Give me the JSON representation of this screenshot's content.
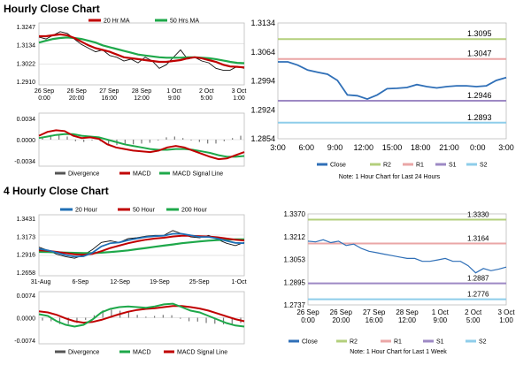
{
  "sections": {
    "hourly_title": "Hourly Close Chart",
    "four_hourly_title": "4 Hourly Close Chart"
  },
  "colors": {
    "red": "#c00000",
    "green": "#1ea84a",
    "blue": "#1f6fb5",
    "close_line": "#2f6fb7",
    "r2": "#b3cf7c",
    "r1": "#eaa6a6",
    "s1": "#9d89c4",
    "s2": "#8ecdea",
    "grid": "#cccccc"
  },
  "chart_data": [
    {
      "id": "hourly_price",
      "type": "line",
      "legend": [
        "20 Hr MA",
        "50 Hrs MA"
      ],
      "legend_colors": [
        "#c00000",
        "#1ea84a"
      ],
      "y_ticks": [
        "1.3247",
        "1.3134",
        "1.3022",
        "1.2910"
      ],
      "ylim": [
        1.291,
        1.3247
      ],
      "x_ticks": [
        [
          "26 Sep",
          "0:00"
        ],
        [
          "26 Sep",
          "20:00"
        ],
        [
          "27 Sep",
          "16:00"
        ],
        [
          "28 Sep",
          "12:00"
        ],
        [
          "1 Oct",
          "9:00"
        ],
        [
          "2 Oct",
          "5:00"
        ],
        [
          "3 Oct",
          "1:00"
        ]
      ],
      "series": [
        {
          "name": "Price",
          "values": [
            1.317,
            1.316,
            1.318,
            1.32,
            1.319,
            1.316,
            1.313,
            1.311,
            1.309,
            1.31,
            1.307,
            1.306,
            1.304,
            1.305,
            1.303,
            1.306,
            1.304,
            1.3,
            1.302,
            1.306,
            1.31,
            1.305,
            1.306,
            1.304,
            1.303,
            1.3,
            1.299,
            1.299,
            1.301,
            1.3
          ]
        },
        {
          "name": "20 Hr MA",
          "values": [
            1.3175,
            1.3175,
            1.318,
            1.3185,
            1.318,
            1.3165,
            1.3145,
            1.3125,
            1.311,
            1.31,
            1.309,
            1.3075,
            1.306,
            1.3055,
            1.305,
            1.3045,
            1.304,
            1.3035,
            1.3035,
            1.304,
            1.3045,
            1.3055,
            1.306,
            1.3055,
            1.3045,
            1.3035,
            1.302,
            1.301,
            1.3008,
            1.3005
          ]
        },
        {
          "name": "50 Hrs MA",
          "values": [
            1.314,
            1.315,
            1.316,
            1.3165,
            1.3168,
            1.3165,
            1.316,
            1.315,
            1.314,
            1.3125,
            1.3115,
            1.3105,
            1.3095,
            1.3085,
            1.3075,
            1.307,
            1.3065,
            1.306,
            1.3058,
            1.3058,
            1.3058,
            1.306,
            1.306,
            1.3058,
            1.3055,
            1.305,
            1.3043,
            1.3035,
            1.303,
            1.3028
          ]
        }
      ]
    },
    {
      "id": "hourly_macd",
      "type": "line",
      "legend": [
        "Divergence",
        "MACD",
        "MACD Signal Line"
      ],
      "legend_colors": [
        "#555555",
        "#c00000",
        "#1ea84a"
      ],
      "y_ticks": [
        "0.0034",
        "0.0000",
        "-0.0034"
      ],
      "ylim": [
        -0.0034,
        0.0034
      ],
      "series": [
        {
          "name": "MACD",
          "values": [
            0.0005,
            0.001,
            0.0012,
            0.0011,
            0.0005,
            0.0002,
            0.0003,
            0.0001,
            -0.0006,
            -0.001,
            -0.0012,
            -0.0014,
            -0.0015,
            -0.0016,
            -0.0014,
            -0.001,
            -0.0008,
            -0.001,
            -0.0014,
            -0.0018,
            -0.0022,
            -0.0025,
            -0.0024,
            -0.002,
            -0.0016
          ]
        },
        {
          "name": "MACD Signal Line",
          "values": [
            0.0002,
            0.0004,
            0.0006,
            0.0007,
            0.0007,
            0.0005,
            0.0004,
            0.0003,
            0.0,
            -0.0003,
            -0.0006,
            -0.0008,
            -0.001,
            -0.0012,
            -0.0013,
            -0.0013,
            -0.0012,
            -0.0012,
            -0.0013,
            -0.0015,
            -0.0017,
            -0.002,
            -0.0022,
            -0.0022,
            -0.0021
          ]
        },
        {
          "name": "Divergence",
          "values": [
            0.0003,
            0.0006,
            0.0006,
            0.0004,
            -0.0002,
            -0.0003,
            -0.0001,
            -0.0002,
            -0.0006,
            -0.0007,
            -0.0006,
            -0.0006,
            -0.0005,
            -0.0004,
            -0.0001,
            0.0003,
            0.0004,
            0.0002,
            -0.0001,
            -0.0003,
            -0.0005,
            -0.0005,
            -0.0002,
            0.0002,
            0.0005
          ]
        }
      ]
    },
    {
      "id": "hourly_close_levels",
      "type": "line",
      "y_ticks": [
        "1.3134",
        "1.3064",
        "1.2994",
        "1.2924",
        "1.2854"
      ],
      "ylim": [
        1.2854,
        1.3134
      ],
      "x_ticks": [
        "3:00",
        "6:00",
        "9:00",
        "12:00",
        "15:00",
        "18:00",
        "21:00",
        "0:00",
        "3:00"
      ],
      "levels": [
        {
          "name": "R2",
          "value": 1.3095,
          "label": "1.3095"
        },
        {
          "name": "R1",
          "value": 1.3047,
          "label": "1.3047"
        },
        {
          "name": "S1",
          "value": 1.2946,
          "label": "1.2946"
        },
        {
          "name": "S2",
          "value": 1.2893,
          "label": "1.2893"
        }
      ],
      "close_values": [
        1.304,
        1.304,
        1.3032,
        1.302,
        1.3015,
        1.301,
        1.2995,
        1.296,
        1.2958,
        1.295,
        1.296,
        1.2975,
        1.2976,
        1.2978,
        1.2985,
        1.298,
        1.2977,
        1.298,
        1.2982,
        1.2982,
        1.298,
        1.2982,
        1.2995,
        1.3002
      ],
      "legend": [
        "Close",
        "R2",
        "R1",
        "S1",
        "S2"
      ],
      "note": "Note: 1 Hour Chart for Last 24 Hours"
    },
    {
      "id": "four_hourly_price",
      "type": "line",
      "legend": [
        "20 Hour",
        "50 Hour",
        "200 Hour"
      ],
      "legend_colors": [
        "#1f6fb5",
        "#c00000",
        "#1ea84a"
      ],
      "y_ticks": [
        "1.3431",
        "1.3173",
        "1.2916",
        "1.2658"
      ],
      "ylim": [
        1.2658,
        1.3431
      ],
      "x_ticks": [
        "31-Aug",
        "6-Sep",
        "12-Sep",
        "19-Sep",
        "25-Sep",
        "1-Oct"
      ],
      "series": [
        {
          "name": "Price",
          "values": [
            1.302,
            1.298,
            1.293,
            1.29,
            1.288,
            1.292,
            1.299,
            1.308,
            1.31,
            1.308,
            1.313,
            1.314,
            1.316,
            1.317,
            1.317,
            1.323,
            1.319,
            1.315,
            1.314,
            1.317,
            1.312,
            1.307,
            1.304,
            1.308
          ]
        },
        {
          "name": "20 Hour",
          "values": [
            1.3,
            1.298,
            1.295,
            1.292,
            1.29,
            1.2905,
            1.295,
            1.303,
            1.307,
            1.308,
            1.311,
            1.313,
            1.315,
            1.316,
            1.3165,
            1.319,
            1.319,
            1.317,
            1.315,
            1.315,
            1.313,
            1.31,
            1.3075,
            1.307
          ]
        },
        {
          "name": "50 Hour",
          "values": [
            1.298,
            1.2975,
            1.296,
            1.2945,
            1.293,
            1.2925,
            1.2935,
            1.297,
            1.301,
            1.304,
            1.307,
            1.3095,
            1.3115,
            1.313,
            1.314,
            1.3155,
            1.3165,
            1.3165,
            1.316,
            1.3155,
            1.3145,
            1.313,
            1.3115,
            1.3105
          ]
        },
        {
          "name": "200 Hour",
          "values": [
            1.296,
            1.2958,
            1.2955,
            1.2952,
            1.2948,
            1.2945,
            1.2945,
            1.295,
            1.2958,
            1.2968,
            1.298,
            1.2995,
            1.301,
            1.3025,
            1.304,
            1.3055,
            1.307,
            1.3082,
            1.3093,
            1.3103,
            1.311,
            1.3115,
            1.3118,
            1.312
          ]
        }
      ]
    },
    {
      "id": "four_hourly_macd",
      "type": "line",
      "legend": [
        "Divergence",
        "MACD",
        "MACD Signal Line"
      ],
      "legend_colors": [
        "#555555",
        "#1ea84a",
        "#c00000"
      ],
      "y_ticks": [
        "0.0074",
        "0.0000",
        "-0.0074"
      ],
      "ylim": [
        -0.0074,
        0.0074
      ],
      "series": [
        {
          "name": "MACD",
          "values": [
            0.001,
            0.0005,
            -0.001,
            -0.002,
            -0.0025,
            -0.002,
            -0.0005,
            0.0015,
            0.0025,
            0.003,
            0.0032,
            0.003,
            0.0028,
            0.0032,
            0.0038,
            0.004,
            0.003,
            0.002,
            0.0015,
            0.0005,
            -0.0005,
            -0.0015,
            -0.0022,
            -0.0025
          ]
        },
        {
          "name": "MACD Signal Line",
          "values": [
            0.0018,
            0.0015,
            0.0008,
            -0.0002,
            -0.001,
            -0.0014,
            -0.0012,
            -0.0006,
            0.0002,
            0.001,
            0.0017,
            0.0022,
            0.0025,
            0.0027,
            0.003,
            0.0033,
            0.0033,
            0.003,
            0.0026,
            0.002,
            0.0012,
            0.0004,
            -0.0004,
            -0.001
          ]
        },
        {
          "name": "Divergence",
          "values": [
            -0.0008,
            -0.001,
            -0.0018,
            -0.0018,
            -0.0015,
            -0.0006,
            0.0007,
            0.0021,
            0.0023,
            0.002,
            0.0015,
            0.0008,
            0.0003,
            0.0005,
            0.0008,
            0.0007,
            -0.0003,
            -0.001,
            -0.0011,
            -0.0015,
            -0.0017,
            -0.0019,
            -0.0018,
            -0.0015
          ]
        }
      ]
    },
    {
      "id": "four_hourly_close_levels",
      "type": "line",
      "y_ticks": [
        "1.3370",
        "1.3212",
        "1.3053",
        "1.2895",
        "1.2737"
      ],
      "ylim": [
        1.2737,
        1.337
      ],
      "x_ticks": [
        [
          "26 Sep",
          "0:00"
        ],
        [
          "26 Sep",
          "20:00"
        ],
        [
          "27 Sep",
          "16:00"
        ],
        [
          "28 Sep",
          "12:00"
        ],
        [
          "1 Oct",
          "9:00"
        ],
        [
          "2 Oct",
          "5:00"
        ],
        [
          "3 Oct",
          "1:00"
        ]
      ],
      "levels": [
        {
          "name": "R2",
          "value": 1.333,
          "label": "1.3330"
        },
        {
          "name": "R1",
          "value": 1.3164,
          "label": "1.3164"
        },
        {
          "name": "S1",
          "value": 1.2887,
          "label": "1.2887"
        },
        {
          "name": "S2",
          "value": 1.2776,
          "label": "1.2776"
        }
      ],
      "close_values": [
        1.318,
        1.3175,
        1.319,
        1.317,
        1.318,
        1.315,
        1.316,
        1.313,
        1.311,
        1.31,
        1.309,
        1.308,
        1.307,
        1.306,
        1.306,
        1.304,
        1.304,
        1.305,
        1.306,
        1.304,
        1.304,
        1.301,
        1.296,
        1.299,
        1.2975,
        1.2985,
        1.3
      ],
      "legend": [
        "Close",
        "R2",
        "R1",
        "S1",
        "S2"
      ],
      "note": "Note: 1 Hour Chart for Last 1 Week"
    }
  ]
}
